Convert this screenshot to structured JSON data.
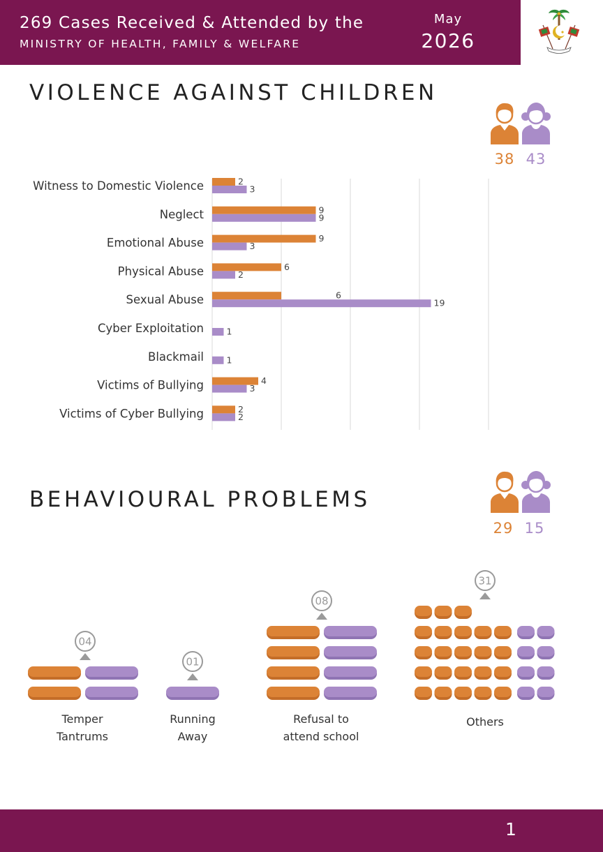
{
  "header": {
    "line1": "269 Cases Received & Attended by the",
    "line2": "MINISTRY OF HEALTH, FAMILY &  WELFARE",
    "month": "May",
    "year": "2026"
  },
  "colors": {
    "boy": "#dc8336",
    "girl": "#a98cc8",
    "brand": "#7a1650"
  },
  "violence": {
    "title": "VIOLENCE AGAINST CHILDREN",
    "boys_total": "38",
    "girls_total": "43"
  },
  "behavioural": {
    "title": "BEHAVIOURAL PROBLEMS",
    "boys_total": "29",
    "girls_total": "15"
  },
  "chart_data": [
    {
      "type": "bar",
      "orientation": "horizontal",
      "categories": [
        "Witness to Domestic Violence",
        "Neglect",
        "Emotional Abuse",
        "Physical Abuse",
        "Sexual Abuse",
        "Cyber Exploitation",
        "Blackmail",
        "Victims of Bullying",
        "Victims of Cyber Bullying"
      ],
      "series": [
        {
          "values": [
            2,
            9,
            9,
            6,
            6,
            0,
            0,
            4,
            2
          ],
          "color": "#dc8336"
        },
        {
          "values": [
            3,
            9,
            3,
            2,
            19,
            1,
            1,
            3,
            2
          ],
          "color": "#a98cc8"
        }
      ],
      "xlim": [
        0,
        24
      ],
      "grid": true
    },
    {
      "type": "bar",
      "style": "pictogram",
      "categories": [
        {
          "line1": "Temper",
          "line2": "Tantrums",
          "total": "04",
          "boys": 2,
          "girls": 2
        },
        {
          "line1": "Running",
          "line2": "Away",
          "total": "01",
          "boys": 0,
          "girls": 1
        },
        {
          "line1": "Refusal to",
          "line2": "attend school",
          "total": "08",
          "boys": 4,
          "girls": 4
        },
        {
          "line1": "Others",
          "line2": "",
          "total": "31",
          "boys": 23,
          "girls": 8
        }
      ]
    }
  ],
  "footer": {
    "page": "1"
  }
}
